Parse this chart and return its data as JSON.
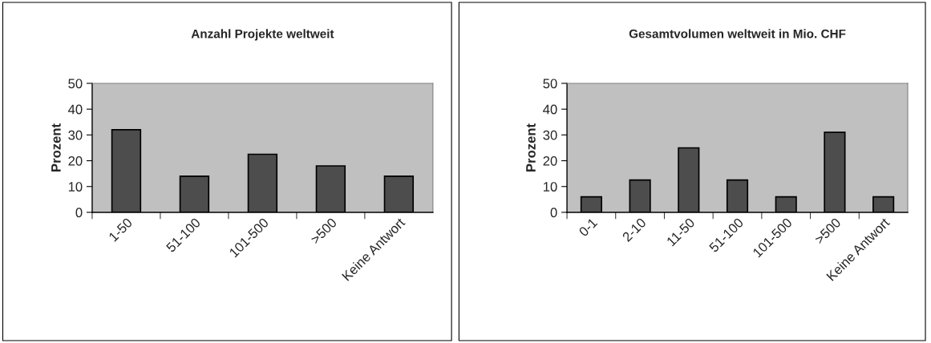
{
  "chart_data": [
    {
      "type": "bar",
      "title": "Anzahl Projekte weltweit",
      "ylabel": "Prozent",
      "categories": [
        "1-50",
        "51-100",
        "101-500",
        ">500",
        "Keine Antwort"
      ],
      "values": [
        32,
        14,
        22.5,
        18,
        14
      ],
      "color": "#4d4d4d",
      "ylim": [
        0,
        50
      ],
      "yticks": [
        0,
        10,
        20,
        30,
        40,
        50
      ],
      "grid": false,
      "legend": false
    },
    {
      "type": "bar",
      "title": "Gesamtvolumen weltweit in Mio. CHF",
      "ylabel": "Prozent",
      "categories": [
        "0-1",
        "2-10",
        "11-50",
        "51-100",
        "101-500",
        ">500",
        "Keine Antwort"
      ],
      "values": [
        6,
        12.5,
        25,
        12.5,
        6,
        31,
        6
      ],
      "color": "#4d4d4d",
      "ylim": [
        0,
        50
      ],
      "yticks": [
        0,
        10,
        20,
        30,
        40,
        50
      ],
      "grid": false,
      "legend": false
    }
  ]
}
